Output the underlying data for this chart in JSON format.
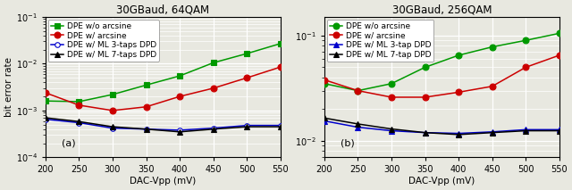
{
  "x": [
    200,
    250,
    300,
    350,
    400,
    450,
    500,
    550
  ],
  "panel_a": {
    "title": "30GBaud, 64QAM",
    "ylabel": "bit error rate",
    "xlabel": "DAC-Vpp (mV)",
    "ylim": [
      0.0001,
      0.1
    ],
    "yticks": [
      0.0001,
      0.001,
      0.01,
      0.1
    ],
    "label_text": "(a)",
    "series": [
      {
        "label": "DPE w/o arcsine",
        "color": "#009900",
        "marker": "s",
        "markersize": 5,
        "markerfacecolor": "#009900",
        "y": [
          0.0016,
          0.00155,
          0.0022,
          0.0035,
          0.0055,
          0.0105,
          0.0165,
          0.027
        ]
      },
      {
        "label": "DPE w/ arcsine",
        "color": "#cc0000",
        "marker": "o",
        "markersize": 5,
        "markerfacecolor": "#cc0000",
        "y": [
          0.0024,
          0.0013,
          0.001,
          0.0012,
          0.002,
          0.003,
          0.005,
          0.0085
        ]
      },
      {
        "label": "DPE w/ ML 3-taps DPD",
        "color": "#0000cc",
        "marker": "o",
        "markersize": 4,
        "markerfacecolor": "white",
        "y": [
          0.00065,
          0.00055,
          0.00042,
          0.0004,
          0.00038,
          0.00042,
          0.00048,
          0.00048
        ]
      },
      {
        "label": "DPE w/ ML 7-taps DPD",
        "color": "#000000",
        "marker": "^",
        "markersize": 4,
        "markerfacecolor": "#000000",
        "y": [
          0.0007,
          0.00058,
          0.00045,
          0.0004,
          0.00035,
          0.0004,
          0.00045,
          0.00045
        ]
      }
    ]
  },
  "panel_b": {
    "title": "30GBaud, 256QAM",
    "xlabel": "DAC-Vpp (mV)",
    "ylim": [
      0.007,
      0.15
    ],
    "yticks": [
      0.01,
      0.1
    ],
    "label_text": "(b)",
    "series": [
      {
        "label": "DPE w/o arcsine",
        "color": "#009900",
        "marker": "o",
        "markersize": 5,
        "markerfacecolor": "#009900",
        "y": [
          0.035,
          0.03,
          0.035,
          0.05,
          0.065,
          0.078,
          0.09,
          0.105
        ]
      },
      {
        "label": "DPE w/ arcsine",
        "color": "#cc0000",
        "marker": "o",
        "markersize": 5,
        "markerfacecolor": "#cc0000",
        "y": [
          0.038,
          0.03,
          0.026,
          0.026,
          0.029,
          0.033,
          0.05,
          0.065
        ]
      },
      {
        "label": "DPE w/ ML 3-tap DPD",
        "color": "#0000cc",
        "marker": "^",
        "markersize": 4,
        "markerfacecolor": "#0000cc",
        "y": [
          0.0155,
          0.0135,
          0.0125,
          0.012,
          0.0118,
          0.0122,
          0.0128,
          0.0128
        ]
      },
      {
        "label": "DPE w/ ML 7-tap DPD",
        "color": "#000000",
        "marker": "^",
        "markersize": 4,
        "markerfacecolor": "#000000",
        "y": [
          0.0165,
          0.0145,
          0.013,
          0.012,
          0.0115,
          0.012,
          0.0125,
          0.0125
        ]
      }
    ]
  },
  "background_color": "#e8e8e0",
  "grid_color": "#ffffff",
  "title_fontsize": 8.5,
  "label_fontsize": 7.5,
  "tick_fontsize": 7,
  "legend_fontsize": 6.5
}
